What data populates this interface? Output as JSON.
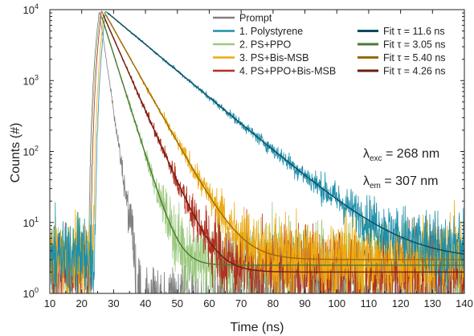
{
  "chart_data": {
    "type": "line",
    "title": "",
    "xlabel": "Time (ns)",
    "ylabel": "Counts (#)",
    "xlim": [
      10,
      140
    ],
    "ylim": [
      1,
      10000
    ],
    "yscale": "log",
    "grid": false,
    "legend_position": "top-right",
    "xticks": [
      10,
      20,
      30,
      40,
      50,
      60,
      70,
      80,
      90,
      100,
      110,
      120,
      130,
      140
    ],
    "yticks": [
      {
        "value": 1,
        "base": "10",
        "exp": "0"
      },
      {
        "value": 10,
        "base": "10",
        "exp": "1"
      },
      {
        "value": 100,
        "base": "10",
        "exp": "2"
      },
      {
        "value": 1000,
        "base": "10",
        "exp": "3"
      },
      {
        "value": 10000,
        "base": "10",
        "exp": "4"
      }
    ],
    "series": [
      {
        "name": "Prompt",
        "kind": "data",
        "color": "#808080",
        "peak_time": 25.5,
        "peak": 9500,
        "tau": 1.4,
        "background": 0,
        "baseline_noise": 2.5
      },
      {
        "name": "1. Polystyrene",
        "kind": "data",
        "color": "#1e8fab",
        "peak_time": 27.5,
        "peak": 9500,
        "tau": 11.6,
        "background": 3,
        "baseline_noise": 5
      },
      {
        "name": "2. PS+PPO",
        "kind": "data",
        "color": "#9bc97e",
        "peak_time": 25.8,
        "peak": 9300,
        "tau": 3.05,
        "background": 2.5,
        "baseline_noise": 5
      },
      {
        "name": "3. PS+Bis-MSB",
        "kind": "data",
        "color": "#eeaa10",
        "peak_time": 27.0,
        "peak": 9400,
        "tau": 5.4,
        "background": 3,
        "baseline_noise": 5
      },
      {
        "name": "4. PS+PPO+Bis-MSB",
        "kind": "data",
        "color": "#b23020",
        "peak_time": 26.2,
        "peak": 9600,
        "tau": 4.26,
        "background": 2,
        "baseline_noise": 4
      },
      {
        "name": "Fit τ = 11.6 ns",
        "kind": "fit",
        "of": "1. Polystyrene",
        "color": "#0d4a5e",
        "tau": 11.6
      },
      {
        "name": "Fit τ = 3.05 ns",
        "kind": "fit",
        "of": "2. PS+PPO",
        "color": "#4a7a30",
        "tau": 3.05
      },
      {
        "name": "Fit τ = 5.40 ns",
        "kind": "fit",
        "of": "3. PS+Bis-MSB",
        "color": "#9a6a0a",
        "tau": 5.4
      },
      {
        "name": "Fit τ = 4.26 ns",
        "kind": "fit",
        "of": "4. PS+PPO+Bis-MSB",
        "color": "#6e1a10",
        "tau": 4.26
      }
    ],
    "legend_left": [
      "Prompt",
      "1. Polystyrene",
      "2. PS+PPO",
      "3. PS+Bis-MSB",
      "4. PS+PPO+Bis-MSB"
    ],
    "legend_right": [
      "Fit τ = 11.6 ns",
      "Fit τ = 3.05 ns",
      "Fit τ = 5.40 ns",
      "Fit τ = 4.26 ns"
    ],
    "annotations": [
      {
        "symbol": "λ",
        "sub": "exc",
        "text": " = 268 nm"
      },
      {
        "symbol": "λ",
        "sub": "em",
        "text": " = 307 nm"
      }
    ]
  }
}
